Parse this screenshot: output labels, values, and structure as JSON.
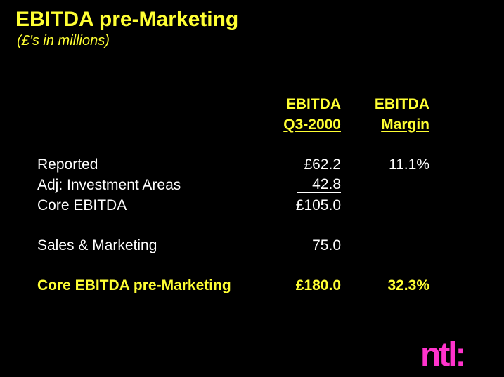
{
  "slide": {
    "title": "EBITDA pre-Marketing",
    "subtitle": "(£’s in millions)"
  },
  "table": {
    "columns": [
      {
        "line1": "EBITDA",
        "line2": "Q3-2000"
      },
      {
        "line1": "EBITDA",
        "line2": "Margin"
      }
    ],
    "rows": [
      {
        "label": "Reported",
        "ebitda": "£62.2",
        "margin": "11.1%"
      },
      {
        "label": "Adj: Investment Areas",
        "ebitda": "42.8",
        "margin": ""
      },
      {
        "label": "Core EBITDA",
        "ebitda": "£105.0",
        "margin": ""
      },
      {
        "label": "Sales & Marketing",
        "ebitda": "75.0",
        "margin": ""
      },
      {
        "label": "Core EBITDA pre-Marketing",
        "ebitda": "£180.0",
        "margin": "32.3%"
      }
    ]
  },
  "logo": {
    "text": "ntl:",
    "color": "#ff33cc"
  },
  "colors": {
    "background": "#000000",
    "accent": "#ffff33",
    "text": "#ffffff"
  }
}
